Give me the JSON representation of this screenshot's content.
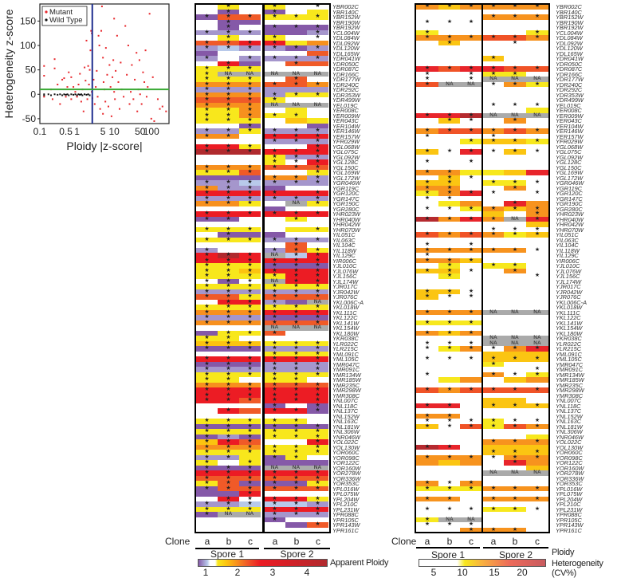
{
  "chart_data": [
    {
      "type": "scatter",
      "title": "",
      "xlabel": "Ploidy |z-score|",
      "ylabel": "Heterogeneity z-score",
      "x_scale": "log",
      "xlim": [
        0.1,
        300
      ],
      "ylim": [
        -60,
        185
      ],
      "x_ticks": [
        "0.1",
        "0.5",
        "1",
        "5",
        "10",
        "50",
        "100"
      ],
      "x_tick_values": [
        0.1,
        0.5,
        1,
        5,
        10,
        50,
        100
      ],
      "y_ticks": [
        "-50",
        "0",
        "50",
        "100",
        "150"
      ],
      "y_tick_values": [
        -50,
        0,
        50,
        100,
        150
      ],
      "legend": {
        "placement": "top-left",
        "entries": [
          {
            "name": "Mutant",
            "color": "#e8262b"
          },
          {
            "name": "Wild Type",
            "color": "#111111"
          }
        ]
      },
      "reference_lines": [
        {
          "orientation": "vertical",
          "x": 2.58,
          "color": "#1f2f8f"
        },
        {
          "orientation": "horizontal",
          "y": 10,
          "color": "#3aa935"
        }
      ],
      "series": [
        {
          "name": "Wild Type",
          "color": "#111111",
          "points": [
            [
              0.13,
              0
            ],
            [
              0.13,
              -3
            ],
            [
              0.17,
              0
            ],
            [
              0.2,
              -2
            ],
            [
              0.25,
              0
            ],
            [
              0.3,
              -1
            ],
            [
              0.35,
              0
            ],
            [
              0.4,
              -2
            ],
            [
              0.45,
              0
            ],
            [
              0.5,
              -1
            ],
            [
              0.55,
              0
            ],
            [
              0.6,
              -2
            ],
            [
              0.7,
              0
            ],
            [
              0.8,
              -1
            ],
            [
              0.9,
              0
            ],
            [
              1.0,
              -2
            ],
            [
              1.1,
              0
            ],
            [
              1.2,
              -1
            ],
            [
              1.3,
              0
            ],
            [
              1.4,
              -2
            ],
            [
              1.6,
              0
            ],
            [
              1.8,
              -1
            ],
            [
              2.0,
              0
            ],
            [
              2.2,
              -2
            ]
          ]
        },
        {
          "name": "Mutant",
          "color": "#e8262b",
          "points": [
            [
              0.13,
              58
            ],
            [
              0.13,
              38
            ],
            [
              0.13,
              -5
            ],
            [
              0.2,
              10
            ],
            [
              0.22,
              -10
            ],
            [
              0.25,
              72
            ],
            [
              0.25,
              53
            ],
            [
              0.3,
              20
            ],
            [
              0.35,
              -20
            ],
            [
              0.4,
              30
            ],
            [
              0.45,
              33
            ],
            [
              0.5,
              -5
            ],
            [
              0.55,
              15
            ],
            [
              0.6,
              45
            ],
            [
              0.7,
              35
            ],
            [
              0.7,
              -10
            ],
            [
              0.8,
              15
            ],
            [
              0.9,
              5
            ],
            [
              1.0,
              -5
            ],
            [
              1.1,
              20
            ],
            [
              1.2,
              42
            ],
            [
              1.3,
              -15
            ],
            [
              1.4,
              10
            ],
            [
              1.5,
              -35
            ],
            [
              1.6,
              55
            ],
            [
              1.7,
              28
            ],
            [
              1.8,
              110
            ],
            [
              1.9,
              -10
            ],
            [
              2.0,
              58
            ],
            [
              2.1,
              20
            ],
            [
              2.2,
              50
            ],
            [
              2.3,
              90
            ],
            [
              2.4,
              130
            ],
            [
              2.5,
              125
            ],
            [
              2.5,
              5
            ],
            [
              2.6,
              -8
            ],
            [
              2.8,
              30
            ],
            [
              3.0,
              -20
            ],
            [
              3.2,
              15
            ],
            [
              3.4,
              48
            ],
            [
              3.6,
              -5
            ],
            [
              3.8,
              120
            ],
            [
              4.0,
              100
            ],
            [
              4.2,
              -30
            ],
            [
              4.5,
              130
            ],
            [
              4.7,
              180
            ],
            [
              5.0,
              75
            ],
            [
              5.0,
              -40
            ],
            [
              5.2,
              25
            ],
            [
              5.5,
              10
            ],
            [
              5.8,
              -15
            ],
            [
              6.0,
              95
            ],
            [
              6.5,
              40
            ],
            [
              7.0,
              -25
            ],
            [
              7.5,
              60
            ],
            [
              8.0,
              15
            ],
            [
              8.5,
              -45
            ],
            [
              9.0,
              35
            ],
            [
              9.5,
              70
            ],
            [
              10,
              155
            ],
            [
              10,
              5
            ],
            [
              10.5,
              -10
            ],
            [
              11,
              48
            ],
            [
              12,
              120
            ],
            [
              13,
              25
            ],
            [
              14,
              -30
            ],
            [
              15,
              65
            ],
            [
              16,
              10
            ],
            [
              18,
              -5
            ],
            [
              20,
              140
            ],
            [
              22,
              40
            ],
            [
              24,
              100
            ],
            [
              26,
              -20
            ],
            [
              28,
              5
            ],
            [
              30,
              60
            ],
            [
              33,
              -10
            ],
            [
              36,
              30
            ],
            [
              40,
              85
            ],
            [
              42,
              -35
            ],
            [
              45,
              10
            ],
            [
              48,
              70
            ],
            [
              50,
              0
            ],
            [
              55,
              -20
            ],
            [
              60,
              45
            ],
            [
              65,
              25
            ],
            [
              70,
              90
            ],
            [
              75,
              -5
            ],
            [
              80,
              15
            ],
            [
              90,
              165
            ],
            [
              100,
              -50
            ],
            [
              110,
              35
            ],
            [
              120,
              -55
            ],
            [
              150,
              -10
            ],
            [
              170,
              -30
            ],
            [
              200,
              -25
            ],
            [
              250,
              -35
            ]
          ]
        }
      ]
    },
    {
      "type": "heatmap",
      "title": "Apparent Ploidy",
      "group_label": "Clone",
      "groups": [
        {
          "name": "Spore 1",
          "clones": [
            "a",
            "b",
            "c"
          ]
        },
        {
          "name": "Spore 2",
          "clones": [
            "a",
            "b",
            "c"
          ]
        }
      ],
      "colorbar": {
        "label": "Apparent Ploidy",
        "ticks": [
          "1",
          "2",
          "3",
          "4"
        ],
        "tick_values": [
          1,
          2,
          3,
          4
        ],
        "range": [
          0.7,
          4.5
        ]
      },
      "cell_codes_legend": {
        "W": "~1 (euploid, white)",
        "B": "~0.9",
        "L": "~0.8",
        "P": "~0.7",
        "Y": "~1.5",
        "G": "~1.8",
        "O": "~2.1",
        "R": "~2.5",
        "D": "~3",
        "M": "~4",
        "N": "NA"
      },
      "note": "Each row string has 6 cells (Spore1 a,b,c | Spore2 a,b,c); lowercase = marked with star"
    },
    {
      "type": "heatmap",
      "title": "Ploidy Heterogeneity (CV%)",
      "group_label": "Clone",
      "groups": [
        {
          "name": "Spore 1",
          "clones": [
            "a",
            "b",
            "c"
          ]
        },
        {
          "name": "Spore 2",
          "clones": [
            "a",
            "b",
            "c"
          ]
        }
      ],
      "colorbar": {
        "label": "Ploidy Heterogeneity (CV%)",
        "ticks": [
          "5",
          "10",
          "15",
          "20"
        ],
        "tick_values": [
          5,
          10,
          15,
          20
        ],
        "range": [
          1,
          25
        ]
      },
      "cell_codes_legend": {
        "W": "<9",
        "Y": "~10",
        "G": "~11",
        "O": "~13",
        "R": "~15",
        "D": "~18",
        "M": "~22",
        "N": "NA"
      },
      "note": "lowercase = marked with star; 'w' = white cell with star"
    }
  ],
  "genes": [
    "YBR002C",
    "YBR140C",
    "YBR152W",
    "YBR190W",
    "YBR192W",
    "YCL004W",
    "YDL084W",
    "YDL092W",
    "YDL120W",
    "YDL165W",
    "YDR041W",
    "YDR050C",
    "YDR087C",
    "YDR166C",
    "YDR177W",
    "YDR240C",
    "YDR292C",
    "YDR353W",
    "YDR499W",
    "YEL019C",
    "YER008C",
    "YER009W",
    "YER043C",
    "YER104W",
    "YER146W",
    "YER157W",
    "YFR029W",
    "YGL068W",
    "YGL075C",
    "YGL092W",
    "YGL128C",
    "YGL150C",
    "YGL169W",
    "YGL172W",
    "YGR046W",
    "YGR119C",
    "YGR120C",
    "YGR147C",
    "YGR190C",
    "YGR280C",
    "YHR023W",
    "YHR040W",
    "YHR042W",
    "YHR070W",
    "YIL051C",
    "YIL063C",
    "YIL104C",
    "YIL118W",
    "YIL129C",
    "YIR006C",
    "YJL010C",
    "YJL076W",
    "YJL156C",
    "YJL174W",
    "YJR017C",
    "YJR042W",
    "YJR076C",
    "YKL006C-A",
    "YKL018W",
    "YKL111C",
    "YKL122C",
    "YKL141W",
    "YKL154W",
    "YKL180W",
    "YKR038C",
    "YLR022C",
    "YLR215C",
    "YML091C",
    "YML105C",
    "YMR047C",
    "YMR091C",
    "YMR134W",
    "YMR185W",
    "YMR235C",
    "YMR298W",
    "YMR308C",
    "YNL007C",
    "YNL118C",
    "YNL137C",
    "YNL152W",
    "YNL163C",
    "YNL181W",
    "YNL306W",
    "YNR046W",
    "YOL022C",
    "YOL130W",
    "YOR060C",
    "YOR098C",
    "YOR122C",
    "YOR160W",
    "YOR278W",
    "YOR336W",
    "YOR353C",
    "YPL016W",
    "YPL075W",
    "YPL204W",
    "YPL210C",
    "YPL231W",
    "YPR088C",
    "YPR105C",
    "YPR143W",
    "YPR161C"
  ],
  "ploidy_rows": [
    "WyW|yWw",
    "WpW|pWY",
    "prr|yyy",
    "WpP|WWW",
    "WpW|ppp",
    "lll|PPl",
    "WyW|yWw",
    "rrd|dYO",
    "lbl|lpl",
    "PWW|WWR",
    "lWl|lll",
    "WdP|WrR",
    "yyy|WWW",
    "yNN|NNN",
    "yyy|WrW",
    "ooo|rro",
    "lll|LLL",
    "ooo|lyy",
    "rrr|yWW",
    "ooo|NNN",
    "yyo|WYW",
    "yyo|yyW",
    "yyy|WGY",
    "WWp|WWP",
    "lly|lll",
    "ooW|ddd",
    "WWW|lll",
    "ddy|WWd",
    "mmm|ddd",
    "WWW|yll",
    "WWW|ywd",
    "ooo|rrr",
    "yyr|WWy",
    "PPP|ool",
    "llb|lll",
    "oll|PWW",
    "ddd|dDd",
    "lll|lll",
    "ooy|WNy",
    "WWW|PWW",
    "ddd|ddd",
    "ppW|WyW",
    "WWW|WWW",
    "yyy|WYy",
    "WpP|PWW",
    "yyy|lll",
    "WWW|WrW",
    "lWW|lry",
    "dmd|Nbd",
    "ddd|ddd",
    "yyy|ppp",
    "yyg|ddd",
    "yyy|ydd",
    "wpw|Ndd",
    "yyy|yyy",
    "lll|lll",
    "rry|rrr",
    "Wdd|lPN",
    "yyy|yyy",
    "ooo|ddd",
    "lll|ppp",
    "ooo|rrr",
    "WWW|NNN",
    "Pyy|rWW",
    "yyW|WWW",
    "ggg|yyy",
    "ppp|lll",
    "WWW|yyy",
    "ddd|ddd",
    "ppp|lll",
    "lll|lll",
    "yyy|yyy",
    "yyW|yyW",
    "ooo|rrr",
    "ddd|ddd",
    "ddd|ddd",
    "ddr|ddd",
    "WWW|pWp",
    "WdR|ddp",
    "WWW|WWW",
    "yyy|yyW",
    "ppp|ppp",
    "yyy|yyy",
    "plp|yyy",
    "gdr|WWd",
    "ooo|yyy",
    "yyy|yyy",
    "llY|pyW",
    "yWy|PPP",
    "ppp|NNN",
    "ddd|ddd",
    "rrr|rrr",
    "yrp|ppy",
    "prr|rrr",
    "PPd|WWW",
    "Wdw|ddy",
    "llb|bbl",
    "yyy|ddd",
    "pNN|lll",
    "WWW|pWW",
    "WWW|WPr",
    "WWW|WWW"
  ],
  "cv_rows": [
    "ogo|ooo",
    "WWW|WWW",
    "WWW|ooo",
    "www|WWW",
    "WWW|WWW",
    "yWW|WWy",
    "ooo|rro",
    "WgW|WwW",
    "WWW|WWW",
    "WWW|WWW",
    "WWW|gWW",
    "WWW|WWW",
    "drd|drr",
    "wWw|yyW",
    "wWw|NNN",
    "rNN|woy",
    "WWW|WWW",
    "WWW|WWW",
    "WWW|WWW",
    "WWW|www",
    "WWW|WWY",
    "ddm|NNN",
    "Wgw|WoW",
    "WWW|WWW",
    "orr|oro",
    "wWW|wWW",
    "WWy|ggy",
    "WWW|WWW",
    "gwd|wgw",
    "WWW|WWW",
    "wWw|WWW",
    "WWW|WWW",
    "ooY|YGD",
    "Wgw|WWW",
    "ggW|yyw",
    "ooW|WoW",
    "yod|wWw",
    "ww_|WWW",
    "WYO|WdO",
    "wwy|ogo",
    "WWW|GWo",
    "mod|oNd",
    "WWW|WWG",
    "WWW|www",
    "ror|oyg",
    "WWW|WWW",
    "wWw|WWW",
    "ooo|oow",
    "wWW|WWW",
    "oog|WWW",
    "WyW|yyW",
    "ggw|WoW",
    "WyW|WWw",
    "WWW|WWW",
    "WWW|WWW",
    "ggw|WWW",
    "gww|WWW",
    "WWW|WWW",
    "WWW|WWW",
    "ooo|NNN",
    "WWW|WWW",
    "yyy|WWW",
    "WWW|WWW",
    "ogo|WWW",
    "WWW|NNN",
    "www|NNN",
    "wyo|wod",
    "WWW|GGG",
    "www|ggg",
    "WWW|yWW",
    "WWW|WWw",
    "wWW|owy",
    "WYO|WGO",
    "WWW|WWW",
    "ror|rrr",
    "WWW|WWW",
    "WWW|GGW",
    "ddW|ggg",
    "WWW|WWW",
    "ooW|WWW",
    "www|yww",
    "gwr|yro",
    "WWW|WWW",
    "WWW|WWY",
    "WWW|ooo",
    "mdW|GGG",
    "WWW|ggg",
    "ooo|woo",
    "OGO|WdO",
    "WWW|WWG",
    "WWW|NNN",
    "WWW|WWW",
    "owo|WWW",
    "yyy|ooo",
    "WWW|WWW",
    "ooW|ooo",
    "WWW|WWW",
    "www|yyw",
    "WWW|WWW",
    "yNN|WWW",
    "www|WWW",
    "WWo|ooW"
  ],
  "clone_label": "Clone",
  "clone_letters": [
    "a",
    "b",
    "c",
    "a",
    "b",
    "c"
  ],
  "spore_labels": [
    "Spore 1",
    "Spore 2"
  ],
  "na_label": "NA",
  "star_glyph": "★",
  "colors": {
    "ploidy": {
      "W": "#ffffff",
      "B": "#b8c9ea",
      "L": "#a596cc",
      "P": "#8559a8",
      "Y": "#f8e71c",
      "G": "#fcc30f",
      "O": "#f7901e",
      "R": "#f05a28",
      "D": "#ec1c24",
      "M": "#b02a2e",
      "N": "#aaaaaa",
      "_": "#ffffff"
    },
    "cv": {
      "W": "#ffffff",
      "Y": "#f7e81e",
      "G": "#fbc512",
      "O": "#f7931e",
      "R": "#f05327",
      "D": "#e8252b",
      "M": "#b52a2f",
      "N": "#aaaaaa",
      "_": "#ffffff"
    }
  }
}
